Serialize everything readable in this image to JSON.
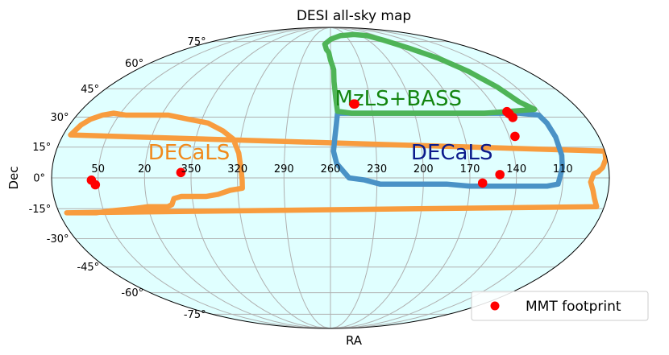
{
  "chart_data": {
    "type": "scatter",
    "projection": "mollweide",
    "title": "DESI all-sky map",
    "xlabel": "RA",
    "ylabel": "Dec",
    "dec_ticks": [
      "75°",
      "60°",
      "45°",
      "30°",
      "15°",
      "0°",
      "-15°",
      "-30°",
      "-45°",
      "-60°",
      "-75°"
    ],
    "ra_ticks": [
      "50",
      "20",
      "350",
      "320",
      "290",
      "260",
      "230",
      "200",
      "170",
      "140",
      "110"
    ],
    "grid": true,
    "background_color": "#e0ffff",
    "regions": [
      {
        "name": "DECaLS",
        "color": "#f89c3e",
        "label_color": "#f08a1c",
        "outline": [
          [
            80,
            13
          ],
          [
            75,
            21
          ],
          [
            72,
            26
          ],
          [
            68,
            29
          ],
          [
            62,
            31
          ],
          [
            55,
            32
          ],
          [
            45,
            31
          ],
          [
            30,
            31
          ],
          [
            15,
            31
          ],
          [
            0,
            29
          ],
          [
            345,
            27
          ],
          [
            333,
            23
          ],
          [
            325,
            19
          ],
          [
            320,
            12
          ],
          [
            318,
            5
          ],
          [
            317,
            -1
          ],
          [
            317,
            -5
          ],
          [
            325,
            -6
          ],
          [
            333,
            -8
          ],
          [
            341,
            -9
          ],
          [
            349,
            -9
          ],
          [
            357,
            -9
          ],
          [
            2,
            -10
          ],
          [
            4,
            -13
          ],
          [
            7,
            -14
          ],
          [
            12,
            -14
          ],
          [
            20,
            -14
          ],
          [
            30,
            -15
          ],
          [
            45,
            -16
          ],
          [
            55,
            -17
          ],
          [
            65,
            -17
          ],
          [
            75,
            -17
          ],
          [
            85,
            -14
          ],
          [
            88,
            -10
          ],
          [
            90,
            -6
          ],
          [
            92,
            -2
          ],
          [
            90,
            2
          ],
          [
            87,
            3
          ],
          [
            84,
            5
          ],
          [
            81,
            9
          ],
          [
            80,
            13
          ]
        ]
      },
      {
        "name": "DECaLS",
        "color": "#4a92c6",
        "label_color": "#0b1a8c",
        "outline": [
          [
            255,
            32
          ],
          [
            240,
            32
          ],
          [
            220,
            32
          ],
          [
            200,
            32
          ],
          [
            180,
            32
          ],
          [
            160,
            32
          ],
          [
            140,
            32
          ],
          [
            125,
            32
          ],
          [
            112,
            31
          ],
          [
            110,
            27
          ],
          [
            109,
            20
          ],
          [
            109,
            11
          ],
          [
            110,
            5
          ],
          [
            112,
            0
          ],
          [
            113,
            -3
          ],
          [
            120,
            -4
          ],
          [
            130,
            -4
          ],
          [
            140,
            -4
          ],
          [
            155,
            -4
          ],
          [
            170,
            -4
          ],
          [
            185,
            -3
          ],
          [
            200,
            -3
          ],
          [
            215,
            -3
          ],
          [
            228,
            -3
          ],
          [
            238,
            -1
          ],
          [
            248,
            0
          ],
          [
            256,
            7
          ],
          [
            258,
            13
          ],
          [
            257,
            20
          ],
          [
            256,
            26
          ],
          [
            255,
            32
          ]
        ]
      },
      {
        "name": "MzLS+BASS",
        "color": "#4fb457",
        "label_color": "#13850f",
        "outline": [
          [
            255,
            33
          ],
          [
            256,
            40
          ],
          [
            257,
            49
          ],
          [
            257,
            56
          ],
          [
            260,
            62
          ],
          [
            262,
            67
          ],
          [
            265,
            69
          ],
          [
            268,
            73
          ],
          [
            259,
            77
          ],
          [
            240,
            80
          ],
          [
            210,
            81
          ],
          [
            188,
            80
          ],
          [
            175,
            76
          ],
          [
            160,
            70
          ],
          [
            145,
            63
          ],
          [
            134,
            55
          ],
          [
            125,
            46
          ],
          [
            119,
            38
          ],
          [
            112,
            34
          ],
          [
            130,
            33
          ],
          [
            150,
            32
          ],
          [
            170,
            32
          ],
          [
            190,
            32
          ],
          [
            210,
            32
          ],
          [
            230,
            32
          ],
          [
            245,
            32
          ],
          [
            255,
            33
          ]
        ]
      }
    ],
    "region_labels": [
      {
        "text": "DECaLS",
        "ra": 352,
        "dec": 9
      },
      {
        "text": "DECaLS",
        "ra": 181,
        "dec": 9
      },
      {
        "text": "MzLS+BASS",
        "ra": 210,
        "dec": 36
      }
    ],
    "points": {
      "name": "MMT footprint",
      "color": "#ff0000",
      "coords": [
        [
          54.3,
          -1.1
        ],
        [
          51.9,
          -3.3
        ],
        [
          356.6,
          2.6
        ],
        [
          242.7,
          36.8
        ],
        [
          242.0,
          36.8
        ],
        [
          133.2,
          32.8
        ],
        [
          132.5,
          31.7
        ],
        [
          131.5,
          29.8
        ],
        [
          136.1,
          20.3
        ],
        [
          150.6,
          1.6
        ],
        [
          161.8,
          -2.5
        ]
      ]
    },
    "legend": {
      "position": "bottom-right",
      "entries": [
        "MMT footprint"
      ]
    }
  }
}
